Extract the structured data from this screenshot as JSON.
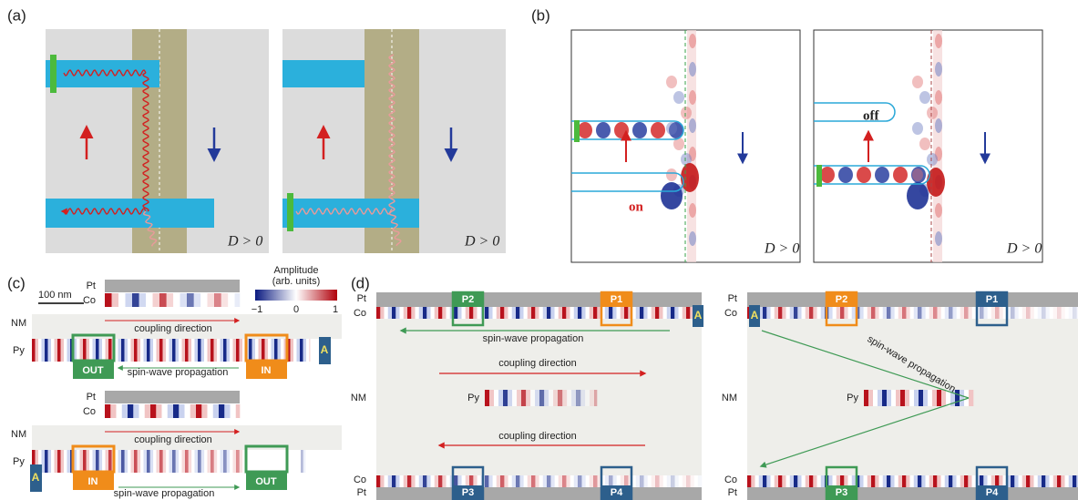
{
  "panel_a": {
    "label": "(a)",
    "conditions": [
      "D > 0",
      "D > 0"
    ]
  },
  "panel_b": {
    "label": "(b)",
    "states": [
      "on",
      "off"
    ],
    "conditions": [
      "D > 0",
      "D > 0"
    ]
  },
  "panel_c": {
    "label": "(c)",
    "scale_bar": "100 nm",
    "colorbar": {
      "title": [
        "Amplitude",
        "(arb. units)"
      ],
      "ticks": [
        "−1",
        "0",
        "1"
      ]
    },
    "devices": [
      {
        "layers": [
          "Pt",
          "Co",
          "NM",
          "Py"
        ],
        "coupling": "coupling direction",
        "propagation": "spin-wave propagation",
        "ports": [
          "OUT",
          "IN",
          "A"
        ]
      },
      {
        "layers": [
          "Pt",
          "Co",
          "NM",
          "Py"
        ],
        "coupling": "coupling direction",
        "propagation": "spin-wave propagation",
        "ports": [
          "A",
          "IN",
          "OUT"
        ]
      }
    ]
  },
  "panel_d": {
    "label": "(d)",
    "devices": [
      {
        "layers_top": [
          "Pt",
          "Co"
        ],
        "nm": "NM",
        "py": "Py",
        "layers_bottom": [
          "Co",
          "Pt"
        ],
        "ports": [
          "P2",
          "P1",
          "A",
          "P3",
          "P4"
        ],
        "propagation": "spin-wave propagation",
        "coupling": [
          "coupling direction",
          "coupling direction"
        ]
      },
      {
        "layers_top": [
          "Pt",
          "Co"
        ],
        "nm": "NM",
        "py": "Py",
        "layers_bottom": [
          "Co",
          "Pt"
        ],
        "ports": [
          "A",
          "P2",
          "P1",
          "P3",
          "P4"
        ],
        "propagation": "spin-wave propagation"
      }
    ]
  }
}
